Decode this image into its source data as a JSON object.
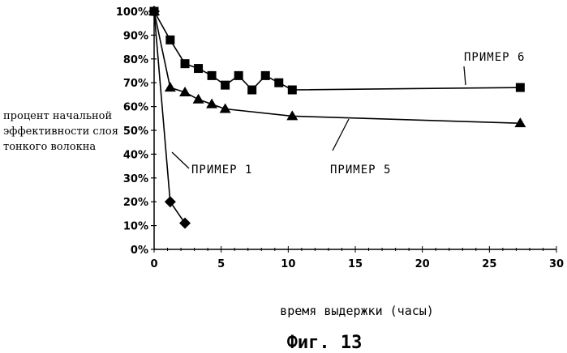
{
  "chart_data": {
    "type": "line",
    "title": "",
    "xlabel": "время выдержки (часы)",
    "ylabel": [
      "процент начальной",
      "эффективности слоя",
      "тонкого волокна"
    ],
    "xlim": [
      0,
      30
    ],
    "ylim": [
      0,
      100
    ],
    "x_ticks": [
      "0",
      "5",
      "10",
      "15",
      "20",
      "25",
      "30"
    ],
    "y_ticks": [
      "0%",
      "10%",
      "20%",
      "30%",
      "40%",
      "50%",
      "60%",
      "70%",
      "80%",
      "90%",
      "100%"
    ],
    "grid": false,
    "series": [
      {
        "name": "ПРИМЕР 6",
        "marker": "square",
        "x": [
          0,
          1.2,
          2.3,
          3.3,
          4.3,
          5.3,
          6.3,
          7.3,
          8.3,
          9.3,
          10.3,
          27.3
        ],
        "y": [
          100,
          88,
          78,
          76,
          73,
          69,
          73,
          67,
          73,
          70,
          67,
          68
        ]
      },
      {
        "name": "ПРИМЕР 5",
        "marker": "triangle",
        "x": [
          0,
          1.2,
          2.3,
          3.3,
          4.3,
          5.3,
          10.3,
          27.3
        ],
        "y": [
          100,
          68,
          66,
          63,
          61,
          59,
          56,
          53
        ]
      },
      {
        "name": "ПРИМЕР 1",
        "marker": "diamond",
        "x": [
          0,
          1.2,
          2.3
        ],
        "y": [
          100,
          20,
          11
        ]
      }
    ]
  },
  "caption": "Фиг. 13"
}
